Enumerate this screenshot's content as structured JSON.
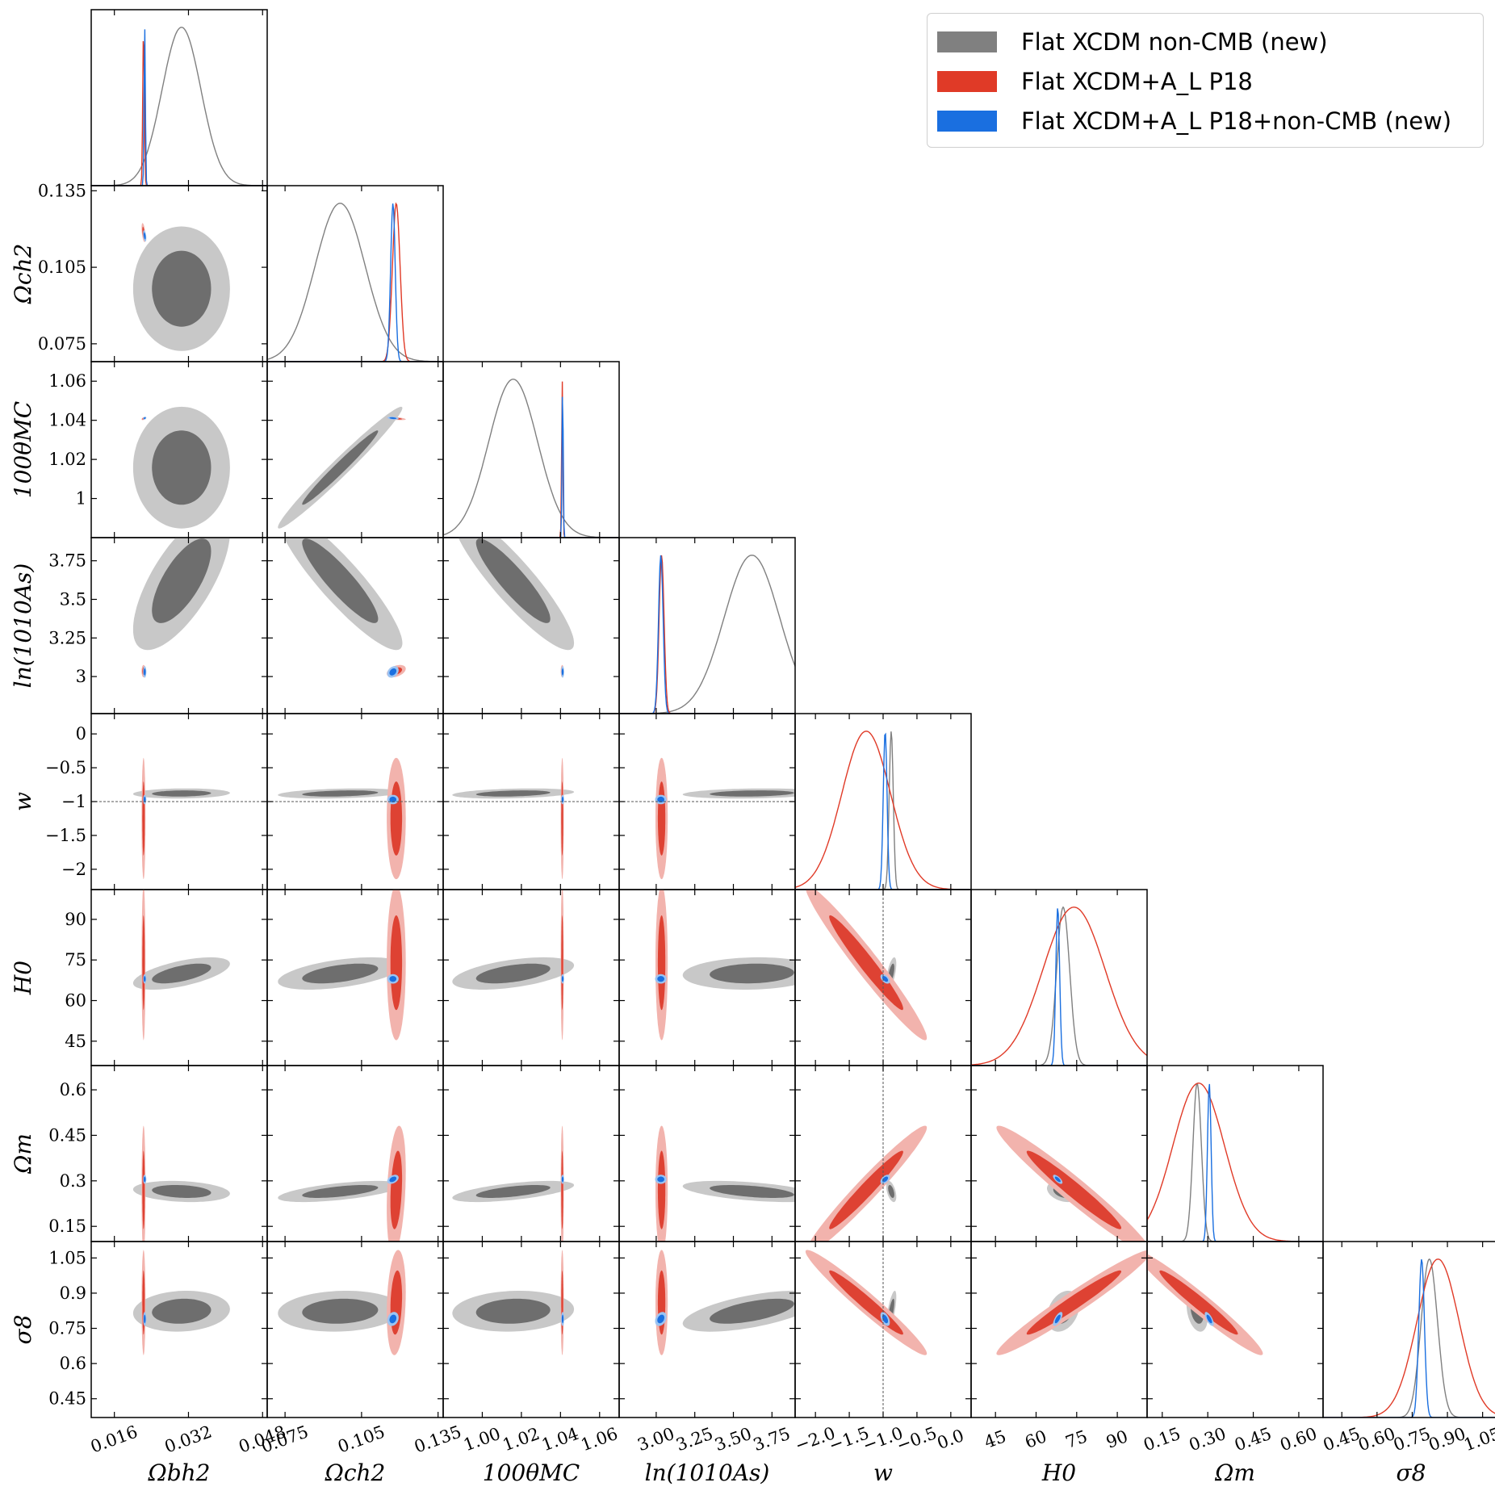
{
  "legend": {
    "items": [
      {
        "label": "Flat XCDM non-CMB (new)",
        "color": "#808080"
      },
      {
        "label": "Flat XCDM+A_L P18",
        "color": "#e03a27"
      },
      {
        "label": "Flat XCDM+A_L P18+non-CMB (new)",
        "color": "#1a6fe0"
      }
    ]
  },
  "colors": {
    "gray_inner": "#6e6e6e",
    "gray_outer": "#c8c8c8",
    "gray_line": "#808080",
    "red_inner": "#de4233",
    "red_outer": "#f2b3ad",
    "red_line": "#e03a27",
    "blue_inner": "#1a6fe0",
    "blue_outer": "#9cc4f2",
    "blue_line": "#1a6fe0",
    "ref_line": "#555555"
  },
  "chart_data": {
    "type": "corner",
    "reference": {
      "parameter": "w",
      "value": -1
    },
    "parameters": [
      {
        "name": "Omega_b h^2",
        "label": "Ωbh2",
        "range": [
          0.011,
          0.049
        ],
        "ticks": [
          0.016,
          0.032,
          0.048
        ],
        "tick_labels": [
          "0.016",
          "0.032",
          "0.048"
        ]
      },
      {
        "name": "Omega_c h^2",
        "label": "Ωch2",
        "range": [
          0.068,
          0.137
        ],
        "ticks": [
          0.075,
          0.105,
          0.135
        ],
        "tick_labels": [
          "0.075",
          "0.105",
          "0.135"
        ]
      },
      {
        "name": "100 theta_MC",
        "label": "100θMC",
        "range": [
          0.98,
          1.07
        ],
        "ticks": [
          1.0,
          1.02,
          1.04,
          1.06
        ],
        "tick_labels": [
          "1.00",
          "1.02",
          "1.04",
          "1.06"
        ],
        "row_ticks": [
          1.0,
          1.02,
          1.04,
          1.06
        ],
        "row_tick_labels": [
          "1",
          "1.02",
          "1.04",
          "1.06"
        ]
      },
      {
        "name": "ln(10^10 A_s)",
        "label": "ln(1010As)",
        "range": [
          2.76,
          3.9
        ],
        "ticks": [
          3.0,
          3.25,
          3.5,
          3.75
        ],
        "tick_labels": [
          "3.00",
          "3.25",
          "3.50",
          "3.75"
        ],
        "row_tick_labels": [
          "3",
          "3.25",
          "3.5",
          "3.75"
        ]
      },
      {
        "name": "w",
        "label": "w",
        "range": [
          -2.3,
          0.3
        ],
        "ticks": [
          -2.0,
          -1.5,
          -1.0,
          -0.5,
          0.0
        ],
        "tick_labels": [
          "−2.0",
          "−1.5",
          "−1.0",
          "−0.5",
          "0.0"
        ],
        "row_tick_labels": [
          "−2",
          "−1.5",
          "−1",
          "−0.5",
          "0"
        ]
      },
      {
        "name": "H_0",
        "label": "H0",
        "range": [
          36,
          101
        ],
        "ticks": [
          45,
          60,
          75,
          90
        ],
        "tick_labels": [
          "45",
          "60",
          "75",
          "90"
        ]
      },
      {
        "name": "Omega_m",
        "label": "Ωm",
        "range": [
          0.1,
          0.68
        ],
        "ticks": [
          0.15,
          0.3,
          0.45,
          0.6
        ],
        "tick_labels": [
          "0.15",
          "0.30",
          "0.45",
          "0.60"
        ],
        "row_tick_labels": [
          "0.15",
          "0.3",
          "0.45",
          "0.6"
        ]
      },
      {
        "name": "sigma_8",
        "label": "σ8",
        "range": [
          0.37,
          1.12
        ],
        "ticks": [
          0.45,
          0.6,
          0.75,
          0.9,
          1.05
        ],
        "tick_labels": [
          "0.45",
          "0.60",
          "0.75",
          "0.90",
          "1.05"
        ],
        "row_tick_labels": [
          "0.45",
          "0.6",
          "0.75",
          "0.9",
          "1.05"
        ]
      }
    ],
    "datasets": [
      {
        "name": "Flat XCDM non-CMB (new)",
        "color_key": "gray",
        "mean": [
          0.0305,
          0.0966,
          1.0158,
          3.62,
          -0.88,
          70.0,
          0.265,
          0.823
        ],
        "sigma": [
          0.0042,
          0.0098,
          0.0125,
          0.18,
          0.03,
          2.4,
          0.014,
          0.035
        ],
        "corr": [
          [
            1,
            0,
            0,
            0.7,
            0.1,
            0.6,
            -0.2,
            0.1
          ],
          [
            0,
            1,
            0.98,
            -0.9,
            0.3,
            0.5,
            0.6,
            0.1
          ],
          [
            0,
            0.98,
            1,
            -0.9,
            0.3,
            0.5,
            0.6,
            0.1
          ],
          [
            0.7,
            -0.9,
            -0.9,
            1,
            0.2,
            0.1,
            -0.5,
            0.6
          ],
          [
            0.1,
            0.3,
            0.3,
            0.2,
            1,
            0.6,
            -0.5,
            0.7
          ],
          [
            0.6,
            0.5,
            0.5,
            0.1,
            0.6,
            1,
            -0.3,
            0.3
          ],
          [
            -0.2,
            0.6,
            0.6,
            -0.5,
            -0.5,
            -0.3,
            1,
            -0.3
          ],
          [
            0.1,
            0.1,
            0.1,
            0.6,
            0.7,
            0.3,
            -0.3,
            1
          ]
        ]
      },
      {
        "name": "Flat XCDM+A_L P18",
        "color_key": "red",
        "mean": [
          0.0223,
          0.1186,
          1.0409,
          3.035,
          -1.25,
          74.0,
          0.27,
          0.86
        ],
        "sigma": [
          0.00017,
          0.0015,
          0.00032,
          0.016,
          0.36,
          11.5,
          0.085,
          0.09
        ],
        "corr": [
          [
            1,
            -0.5,
            0.5,
            0,
            0,
            0,
            0,
            0
          ],
          [
            -0.5,
            1,
            -0.5,
            0.4,
            0,
            0,
            0.3,
            0.2
          ],
          [
            0.5,
            -0.5,
            1,
            0,
            0,
            0,
            0,
            0
          ],
          [
            0,
            0.4,
            0,
            1,
            0,
            0,
            0,
            0
          ],
          [
            0,
            0,
            0,
            0,
            1,
            -0.97,
            0.97,
            -0.97
          ],
          [
            0,
            0,
            0,
            0,
            -0.97,
            1,
            -0.97,
            0.97
          ],
          [
            0,
            0.3,
            0,
            0,
            0.97,
            -0.97,
            1,
            -0.97
          ],
          [
            0,
            0.2,
            0,
            0,
            -0.97,
            0.97,
            -0.97,
            1
          ]
        ]
      },
      {
        "name": "Flat XCDM+A_L P18+non-CMB (new)",
        "color_key": "blue",
        "mean": [
          0.02255,
          0.1173,
          1.0411,
          3.03,
          -0.97,
          68.0,
          0.305,
          0.79
        ],
        "sigma": [
          0.00014,
          0.0009,
          0.0003,
          0.015,
          0.028,
          0.7,
          0.006,
          0.012
        ],
        "corr": [
          [
            1,
            -0.4,
            0.3,
            0,
            0,
            0,
            0,
            0
          ],
          [
            -0.4,
            1,
            -0.3,
            0.3,
            0,
            0,
            0.4,
            0.2
          ],
          [
            0.3,
            -0.3,
            1,
            0,
            0,
            0,
            0,
            0
          ],
          [
            0,
            0.3,
            0,
            1,
            0,
            0,
            0,
            0.3
          ],
          [
            0,
            0,
            0,
            0,
            1,
            -0.5,
            0.5,
            -0.5
          ],
          [
            0,
            0,
            0,
            0,
            -0.5,
            1,
            -0.7,
            0.7
          ],
          [
            0,
            0.4,
            0,
            0,
            0.5,
            -0.7,
            1,
            -0.7
          ],
          [
            0,
            0.2,
            0,
            0.3,
            -0.5,
            0.7,
            -0.7,
            1
          ]
        ]
      }
    ]
  }
}
